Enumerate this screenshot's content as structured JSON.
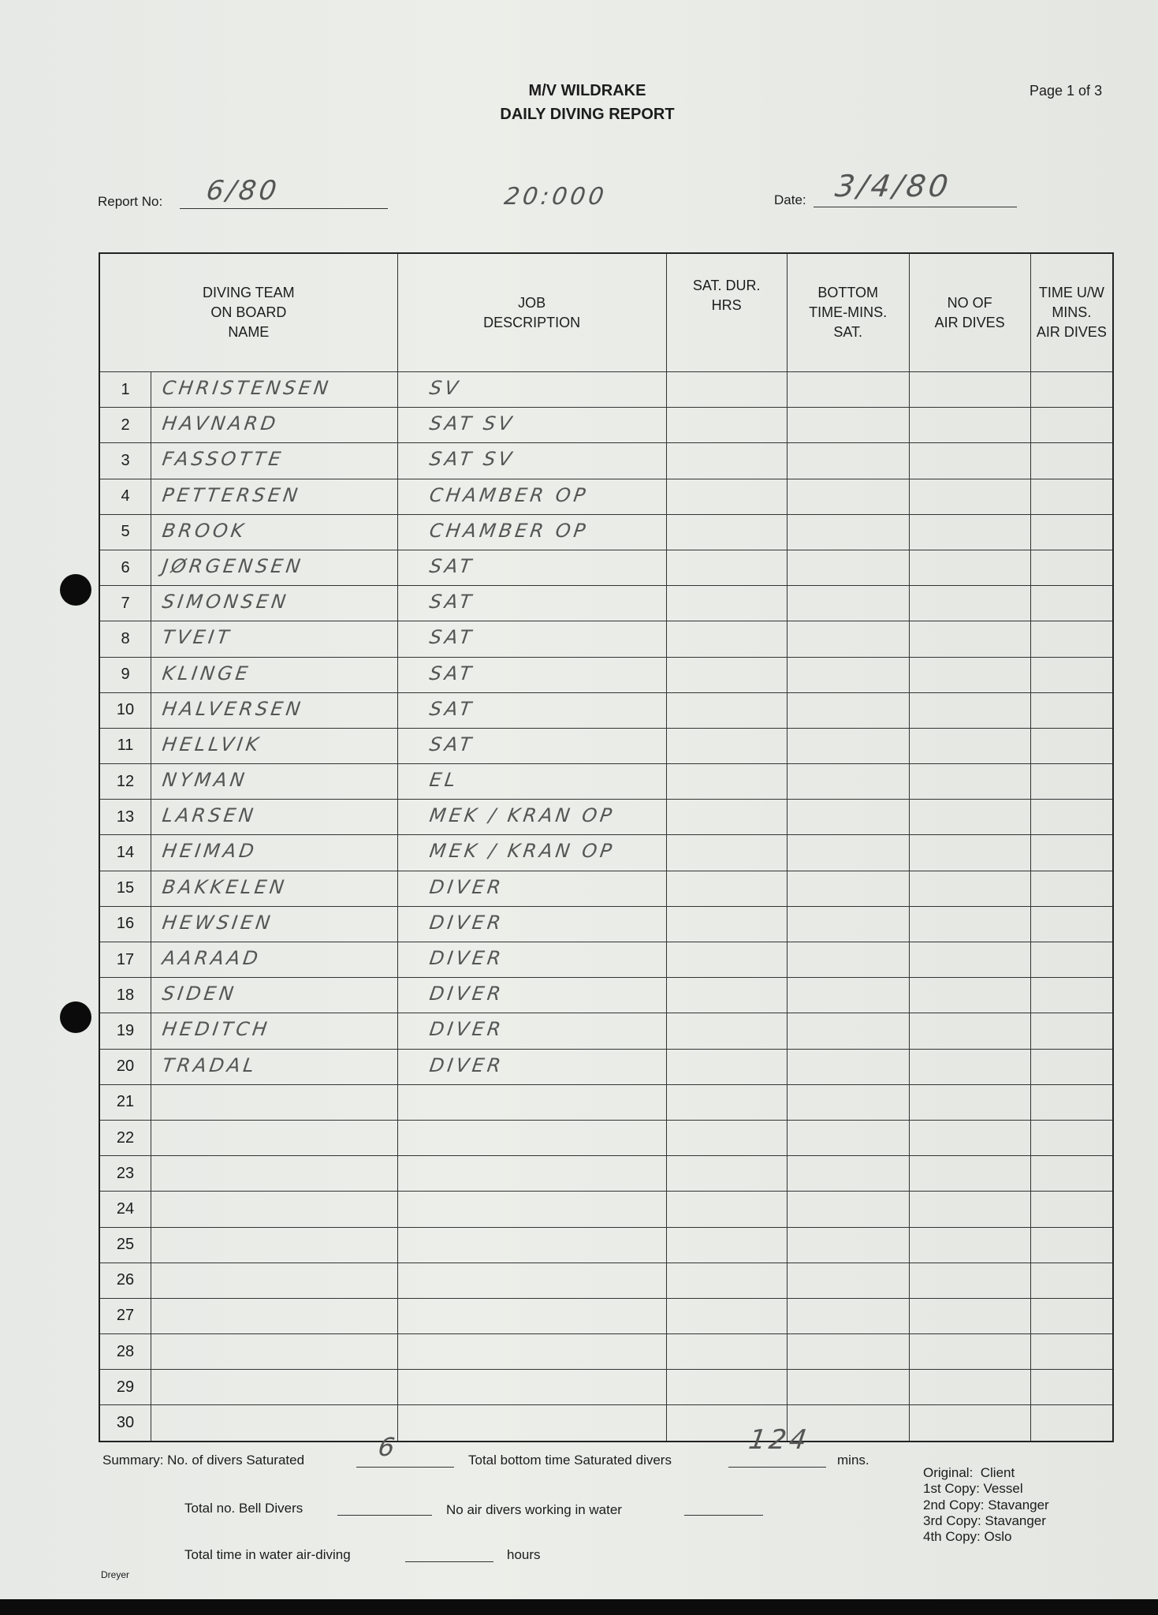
{
  "header": {
    "title": "M/V WILDRAKE",
    "subtitle": "DAILY DIVING REPORT",
    "page": "Page 1 of 3",
    "report_no_label": "Report No:",
    "report_no": "6/80",
    "extra_note": "20:000",
    "date_label": "Date:",
    "date": "3/4/80"
  },
  "table": {
    "headers": [
      "DIVING TEAM\nON BOARD\nNAME",
      "JOB\nDESCRIPTION",
      "SAT. DUR.\nHRS",
      "BOTTOM\nTIME-MINS.\nSAT.",
      "NO OF\nAIR DIVES",
      "TIME U/W\nMINS.\nAIR DIVES"
    ],
    "rows": [
      {
        "n": "1",
        "name": "CHRISTENSEN",
        "job": "SV"
      },
      {
        "n": "2",
        "name": "HAVNARD",
        "job": "SAT SV"
      },
      {
        "n": "3",
        "name": "FASSOTTE",
        "job": "SAT SV"
      },
      {
        "n": "4",
        "name": "PETTERSEN",
        "job": "CHAMBER OP"
      },
      {
        "n": "5",
        "name": "BROOK",
        "job": "CHAMBER OP"
      },
      {
        "n": "6",
        "name": "JØRGENSEN",
        "job": "SAT"
      },
      {
        "n": "7",
        "name": "SIMONSEN",
        "job": "SAT"
      },
      {
        "n": "8",
        "name": "TVEIT",
        "job": "SAT"
      },
      {
        "n": "9",
        "name": "KLINGE",
        "job": "SAT"
      },
      {
        "n": "10",
        "name": "HALVERSEN",
        "job": "SAT"
      },
      {
        "n": "11",
        "name": "HELLVIK",
        "job": "SAT"
      },
      {
        "n": "12",
        "name": "NYMAN",
        "job": "EL"
      },
      {
        "n": "13",
        "name": "LARSEN",
        "job": "MEK / KRAN OP"
      },
      {
        "n": "14",
        "name": "HEIMAD",
        "job": "MEK / KRAN OP"
      },
      {
        "n": "15",
        "name": "BAKKELEN",
        "job": "DIVER"
      },
      {
        "n": "16",
        "name": "HEWSIEN",
        "job": "DIVER"
      },
      {
        "n": "17",
        "name": "AARAAD",
        "job": "DIVER"
      },
      {
        "n": "18",
        "name": "SIDEN",
        "job": "DIVER"
      },
      {
        "n": "19",
        "name": "HEDITCH",
        "job": "DIVER"
      },
      {
        "n": "20",
        "name": "TRADAL",
        "job": "DIVER"
      },
      {
        "n": "21",
        "name": "",
        "job": ""
      },
      {
        "n": "22",
        "name": "",
        "job": ""
      },
      {
        "n": "23",
        "name": "",
        "job": ""
      },
      {
        "n": "24",
        "name": "",
        "job": ""
      },
      {
        "n": "25",
        "name": "",
        "job": ""
      },
      {
        "n": "26",
        "name": "",
        "job": ""
      },
      {
        "n": "27",
        "name": "",
        "job": ""
      },
      {
        "n": "28",
        "name": "",
        "job": ""
      },
      {
        "n": "29",
        "name": "",
        "job": ""
      },
      {
        "n": "30",
        "name": "",
        "job": ""
      }
    ]
  },
  "summary": {
    "label_saturated": "Summary: No. of divers Saturated",
    "saturated": "6",
    "label_bottom": "Total bottom time Saturated divers",
    "bottom": "124",
    "mins": "mins.",
    "label_bell": "Total no. Bell Divers",
    "label_air": "No air divers working in water",
    "label_time": "Total time in water air-diving",
    "hours": "hours"
  },
  "copies": [
    "Original:  Client",
    "1st Copy: Vessel",
    "2nd Copy: Stavanger",
    "3rd Copy: Stavanger",
    "4th Copy: Oslo"
  ],
  "footer": "Dreyer"
}
